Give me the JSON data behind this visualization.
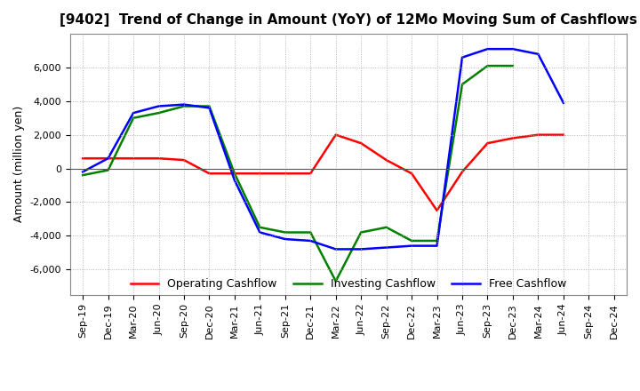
{
  "title": "[9402]  Trend of Change in Amount (YoY) of 12Mo Moving Sum of Cashflows",
  "ylabel": "Amount (million yen)",
  "xlabels": [
    "Sep-19",
    "Dec-19",
    "Mar-20",
    "Jun-20",
    "Sep-20",
    "Dec-20",
    "Mar-21",
    "Jun-21",
    "Sep-21",
    "Dec-21",
    "Mar-22",
    "Jun-22",
    "Sep-22",
    "Dec-22",
    "Mar-23",
    "Jun-23",
    "Sep-23",
    "Dec-23",
    "Mar-24",
    "Jun-24",
    "Sep-24",
    "Dec-24"
  ],
  "operating": [
    600,
    600,
    600,
    600,
    500,
    -300,
    -300,
    -300,
    -300,
    -300,
    2000,
    1500,
    500,
    -300,
    -2500,
    -200,
    1500,
    1800,
    2000,
    2000,
    null,
    null
  ],
  "investing": [
    -400,
    -100,
    3000,
    3300,
    3700,
    3700,
    -300,
    -3500,
    -3800,
    -3800,
    -6700,
    -3800,
    -3500,
    -4300,
    -4300,
    5000,
    6100,
    6100,
    null,
    null,
    null,
    null
  ],
  "free": [
    -200,
    600,
    3300,
    3700,
    3800,
    3600,
    -700,
    -3800,
    -4200,
    -4300,
    -4800,
    -4800,
    -4700,
    -4600,
    -4600,
    6600,
    7100,
    7100,
    6800,
    3900,
    null,
    null
  ],
  "ylim": [
    -7500,
    8000
  ],
  "yticks": [
    -6000,
    -4000,
    -2000,
    0,
    2000,
    4000,
    6000
  ],
  "operating_color": "#ff0000",
  "investing_color": "#008000",
  "free_color": "#0000ff",
  "bg_color": "#ffffff",
  "grid_color": "#aaaaaa",
  "title_fontsize": 11,
  "label_fontsize": 9,
  "tick_fontsize": 8
}
